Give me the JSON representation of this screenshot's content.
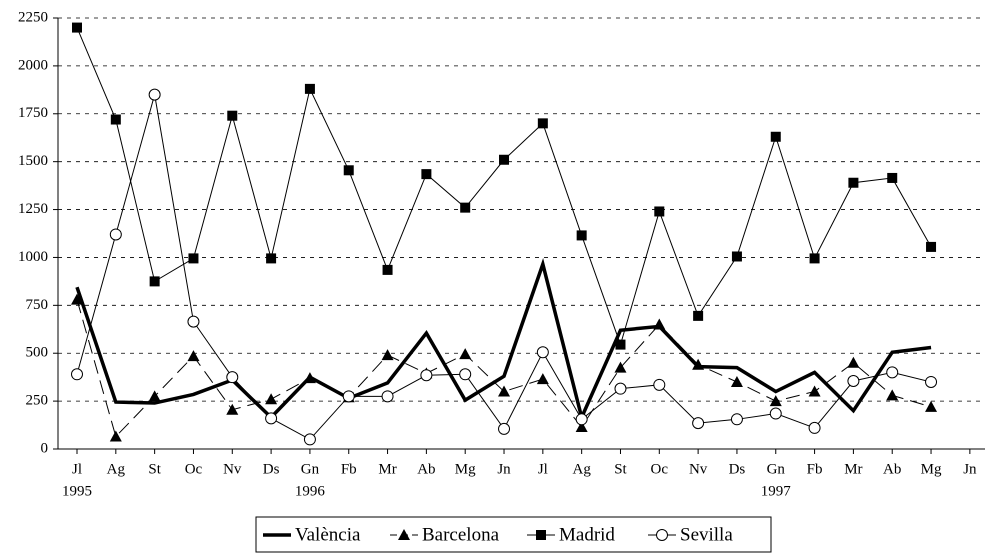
{
  "chart_data": {
    "type": "line",
    "categories": [
      "Jl",
      "Ag",
      "St",
      "Oc",
      "Nv",
      "Ds",
      "Gn",
      "Fb",
      "Mr",
      "Ab",
      "Mg",
      "Jn",
      "Jl",
      "Ag",
      "St",
      "Oc",
      "Nv",
      "Ds",
      "Gn",
      "Fb",
      "Mr",
      "Ab",
      "Mg",
      "Jn"
    ],
    "year_labels": [
      "1995",
      null,
      null,
      null,
      null,
      null,
      "1996",
      null,
      null,
      null,
      null,
      null,
      null,
      null,
      null,
      null,
      null,
      null,
      "1997",
      null,
      null,
      null,
      null,
      null
    ],
    "ylim": [
      0,
      2250
    ],
    "yticks": [
      0,
      250,
      500,
      750,
      1000,
      1250,
      1500,
      1750,
      2000,
      2250
    ],
    "grid": true,
    "series": [
      {
        "name": "València",
        "color": "#000000",
        "width": 3.5,
        "dash": "none",
        "marker": "none",
        "values": [
          845,
          245,
          240,
          285,
          360,
          165,
          375,
          265,
          345,
          605,
          255,
          380,
          965,
          165,
          620,
          640,
          430,
          425,
          300,
          400,
          200,
          505,
          530,
          null
        ]
      },
      {
        "name": "Barcelona",
        "color": "#000000",
        "width": 1,
        "dash": "14,7",
        "marker": "triangle",
        "values": [
          780,
          65,
          275,
          485,
          205,
          260,
          370,
          270,
          490,
          395,
          495,
          300,
          365,
          115,
          425,
          650,
          440,
          350,
          250,
          300,
          450,
          280,
          220,
          null
        ]
      },
      {
        "name": "Madrid",
        "color": "#000000",
        "width": 1,
        "dash": "none",
        "marker": "square",
        "values": [
          2200,
          1720,
          875,
          995,
          1740,
          995,
          1880,
          1455,
          935,
          1435,
          1260,
          1510,
          1700,
          1115,
          545,
          1240,
          695,
          1005,
          1630,
          995,
          1390,
          1415,
          1055,
          null
        ]
      },
      {
        "name": "Sevilla",
        "color": "#000000",
        "width": 1,
        "dash": "none",
        "marker": "circle",
        "values": [
          390,
          1120,
          1850,
          665,
          375,
          160,
          50,
          275,
          275,
          385,
          390,
          105,
          505,
          155,
          315,
          335,
          135,
          155,
          185,
          110,
          355,
          400,
          350,
          null
        ]
      }
    ]
  }
}
